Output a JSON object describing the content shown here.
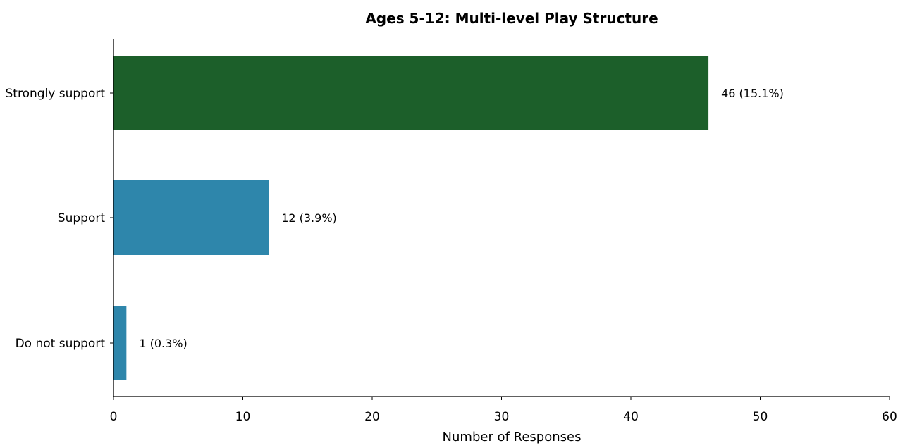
{
  "chart_data": {
    "type": "bar",
    "orientation": "horizontal",
    "title": "Ages 5-12: Multi-level Play Structure",
    "xlabel": "Number of Responses",
    "ylabel": "",
    "categories": [
      "Strongly support",
      "Support",
      "Do not support"
    ],
    "values": [
      46,
      12,
      1
    ],
    "value_labels": [
      "46 (15.1%)",
      "12 (3.9%)",
      "1 (0.3%)"
    ],
    "bar_colors": [
      "#1c5f2a",
      "#2e86ab",
      "#2e86ab"
    ],
    "xlim": [
      0,
      60
    ],
    "xticks": [
      0,
      10,
      20,
      30,
      40,
      50,
      60
    ],
    "grid": false,
    "legend": "none"
  }
}
